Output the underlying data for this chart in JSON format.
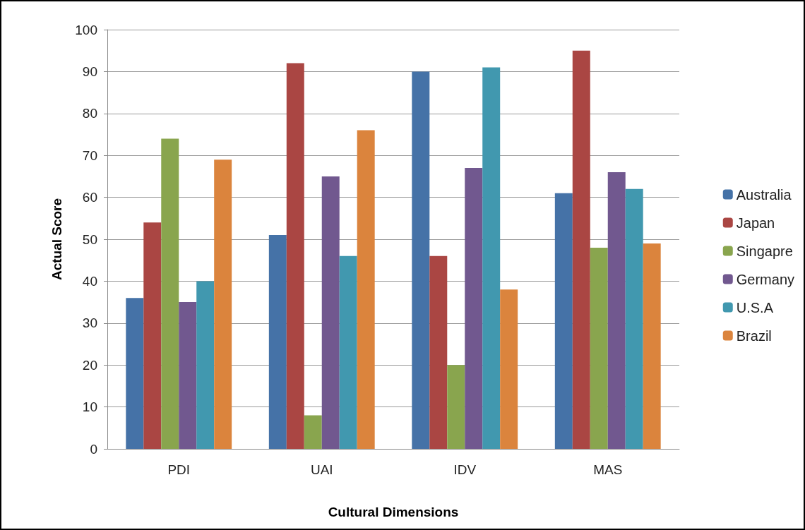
{
  "chart_data": {
    "type": "bar",
    "xlabel": "Cultural Dimensions",
    "ylabel": "Actual Score",
    "categories": [
      "PDI",
      "UAI",
      "IDV",
      "MAS"
    ],
    "series": [
      {
        "name": "Australia",
        "color": "#4572a7",
        "values": [
          36,
          51,
          90,
          61
        ]
      },
      {
        "name": "Japan",
        "color": "#aa4643",
        "values": [
          54,
          92,
          46,
          95
        ]
      },
      {
        "name": "Singapre",
        "color": "#89a54e",
        "values": [
          74,
          8,
          20,
          48
        ]
      },
      {
        "name": "Germany",
        "color": "#71588f",
        "values": [
          35,
          65,
          67,
          66
        ]
      },
      {
        "name": "U.S.A",
        "color": "#4198af",
        "values": [
          40,
          46,
          91,
          62
        ]
      },
      {
        "name": "Brazil",
        "color": "#db843d",
        "values": [
          69,
          76,
          38,
          49
        ]
      }
    ],
    "ylim": [
      0,
      100
    ],
    "yticks": [
      0,
      10,
      20,
      30,
      40,
      50,
      60,
      70,
      80,
      90,
      100
    ],
    "grid": "y",
    "legend": "right"
  }
}
